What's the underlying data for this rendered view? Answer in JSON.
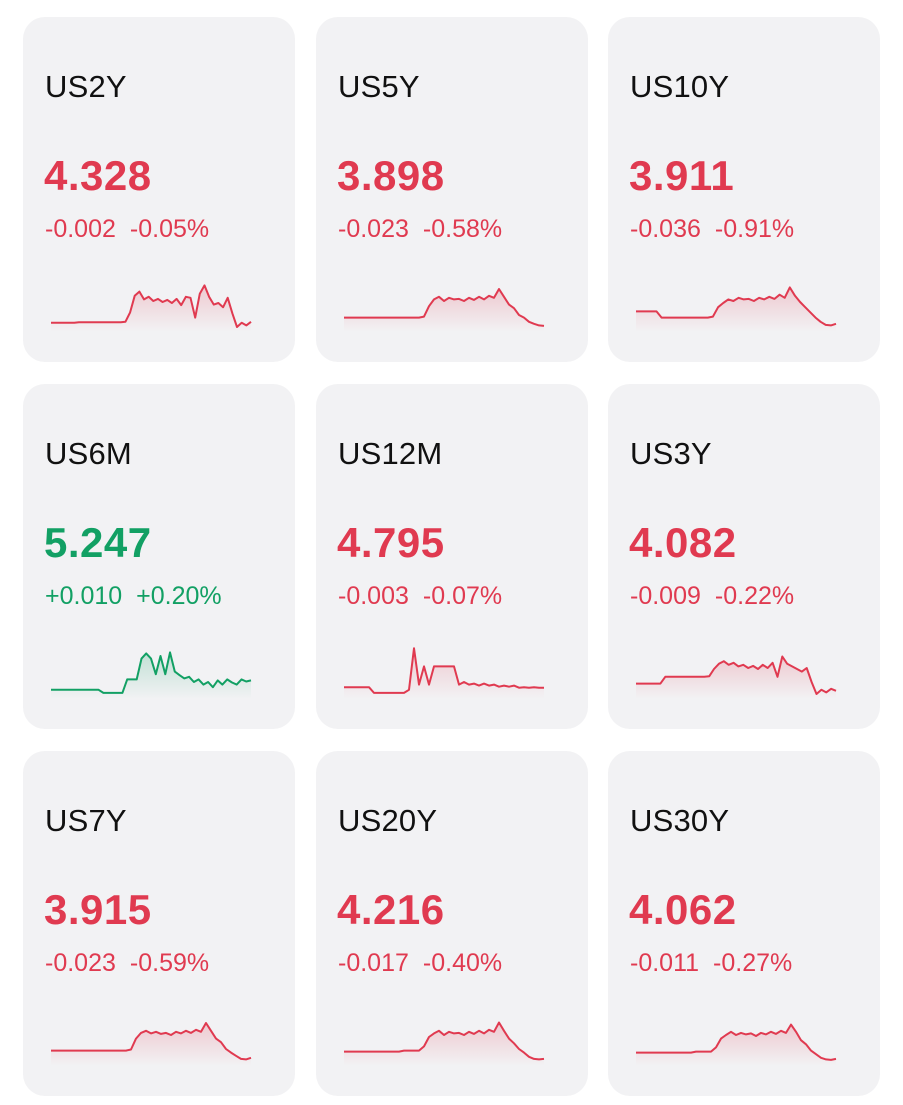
{
  "colors": {
    "down": "#e03a50",
    "up": "#12a064",
    "card_bg": "#f2f2f4"
  },
  "cards": [
    {
      "symbol": "US2Y",
      "price": "4.328",
      "change": "-0.002",
      "change_pct": "-0.05%",
      "direction": "down",
      "spark": [
        0.1,
        0.1,
        0.1,
        0.1,
        0.1,
        0.1,
        0.11,
        0.11,
        0.11,
        0.11,
        0.11,
        0.11,
        0.11,
        0.11,
        0.11,
        0.11,
        0.12,
        0.3,
        0.62,
        0.7,
        0.55,
        0.6,
        0.52,
        0.56,
        0.5,
        0.54,
        0.48,
        0.56,
        0.44,
        0.6,
        0.58,
        0.2,
        0.66,
        0.82,
        0.6,
        0.45,
        0.48,
        0.4,
        0.58,
        0.28,
        0.02,
        0.1,
        0.05,
        0.12
      ]
    },
    {
      "symbol": "US5Y",
      "price": "3.898",
      "change": "-0.023",
      "change_pct": "-0.58%",
      "direction": "down",
      "spark": [
        0.2,
        0.2,
        0.2,
        0.2,
        0.2,
        0.2,
        0.2,
        0.2,
        0.2,
        0.2,
        0.2,
        0.2,
        0.2,
        0.2,
        0.2,
        0.2,
        0.22,
        0.42,
        0.55,
        0.6,
        0.52,
        0.58,
        0.55,
        0.56,
        0.52,
        0.58,
        0.54,
        0.6,
        0.55,
        0.62,
        0.58,
        0.75,
        0.6,
        0.45,
        0.38,
        0.25,
        0.2,
        0.12,
        0.08,
        0.05,
        0.04
      ]
    },
    {
      "symbol": "US10Y",
      "price": "3.911",
      "change": "-0.036",
      "change_pct": "-0.91%",
      "direction": "down",
      "spark": [
        0.32,
        0.32,
        0.32,
        0.32,
        0.32,
        0.2,
        0.2,
        0.2,
        0.2,
        0.2,
        0.2,
        0.2,
        0.2,
        0.2,
        0.2,
        0.22,
        0.4,
        0.48,
        0.55,
        0.52,
        0.58,
        0.55,
        0.56,
        0.52,
        0.58,
        0.55,
        0.6,
        0.56,
        0.64,
        0.58,
        0.78,
        0.62,
        0.5,
        0.4,
        0.3,
        0.2,
        0.12,
        0.06,
        0.05,
        0.08
      ]
    },
    {
      "symbol": "US6M",
      "price": "5.247",
      "change": "+0.010",
      "change_pct": "+0.20%",
      "direction": "up",
      "spark": [
        0.1,
        0.1,
        0.1,
        0.1,
        0.1,
        0.1,
        0.1,
        0.1,
        0.1,
        0.1,
        0.1,
        0.04,
        0.04,
        0.04,
        0.04,
        0.04,
        0.3,
        0.3,
        0.3,
        0.7,
        0.8,
        0.7,
        0.4,
        0.75,
        0.4,
        0.82,
        0.45,
        0.38,
        0.32,
        0.35,
        0.25,
        0.3,
        0.2,
        0.25,
        0.15,
        0.28,
        0.2,
        0.3,
        0.24,
        0.2,
        0.3,
        0.26,
        0.28
      ]
    },
    {
      "symbol": "US12M",
      "price": "4.795",
      "change": "-0.003",
      "change_pct": "-0.07%",
      "direction": "down",
      "spark": [
        0.15,
        0.15,
        0.15,
        0.15,
        0.15,
        0.15,
        0.04,
        0.04,
        0.04,
        0.04,
        0.04,
        0.04,
        0.04,
        0.1,
        0.9,
        0.2,
        0.55,
        0.2,
        0.55,
        0.55,
        0.55,
        0.55,
        0.55,
        0.2,
        0.25,
        0.2,
        0.22,
        0.18,
        0.22,
        0.18,
        0.2,
        0.16,
        0.18,
        0.16,
        0.18,
        0.14,
        0.15,
        0.14,
        0.15,
        0.14,
        0.14
      ]
    },
    {
      "symbol": "US3Y",
      "price": "4.082",
      "change": "-0.009",
      "change_pct": "-0.22%",
      "direction": "down",
      "spark": [
        0.22,
        0.22,
        0.22,
        0.22,
        0.22,
        0.22,
        0.35,
        0.35,
        0.35,
        0.35,
        0.35,
        0.35,
        0.35,
        0.35,
        0.35,
        0.36,
        0.5,
        0.6,
        0.65,
        0.58,
        0.62,
        0.55,
        0.58,
        0.52,
        0.56,
        0.5,
        0.58,
        0.52,
        0.62,
        0.35,
        0.74,
        0.6,
        0.55,
        0.5,
        0.45,
        0.52,
        0.25,
        0.02,
        0.1,
        0.05,
        0.12,
        0.08
      ]
    },
    {
      "symbol": "US7Y",
      "price": "3.915",
      "change": "-0.023",
      "change_pct": "-0.59%",
      "direction": "down",
      "spark": [
        0.22,
        0.22,
        0.22,
        0.22,
        0.22,
        0.22,
        0.22,
        0.22,
        0.22,
        0.22,
        0.22,
        0.22,
        0.22,
        0.22,
        0.22,
        0.22,
        0.24,
        0.45,
        0.56,
        0.6,
        0.55,
        0.58,
        0.54,
        0.56,
        0.52,
        0.58,
        0.55,
        0.6,
        0.56,
        0.62,
        0.58,
        0.75,
        0.6,
        0.45,
        0.38,
        0.25,
        0.18,
        0.12,
        0.06,
        0.05,
        0.08
      ]
    },
    {
      "symbol": "US20Y",
      "price": "4.216",
      "change": "-0.017",
      "change_pct": "-0.40%",
      "direction": "down",
      "spark": [
        0.2,
        0.2,
        0.2,
        0.2,
        0.2,
        0.2,
        0.2,
        0.2,
        0.2,
        0.2,
        0.2,
        0.2,
        0.22,
        0.22,
        0.22,
        0.22,
        0.3,
        0.48,
        0.55,
        0.6,
        0.52,
        0.58,
        0.55,
        0.56,
        0.52,
        0.58,
        0.54,
        0.6,
        0.55,
        0.62,
        0.58,
        0.76,
        0.6,
        0.45,
        0.36,
        0.25,
        0.18,
        0.1,
        0.06,
        0.05,
        0.06
      ]
    },
    {
      "symbol": "US30Y",
      "price": "4.062",
      "change": "-0.011",
      "change_pct": "-0.27%",
      "direction": "down",
      "spark": [
        0.18,
        0.18,
        0.18,
        0.18,
        0.18,
        0.18,
        0.18,
        0.18,
        0.18,
        0.18,
        0.18,
        0.18,
        0.2,
        0.2,
        0.2,
        0.2,
        0.28,
        0.45,
        0.52,
        0.58,
        0.52,
        0.56,
        0.53,
        0.55,
        0.5,
        0.56,
        0.53,
        0.58,
        0.54,
        0.6,
        0.56,
        0.72,
        0.58,
        0.42,
        0.34,
        0.22,
        0.15,
        0.08,
        0.05,
        0.04,
        0.06
      ]
    }
  ]
}
